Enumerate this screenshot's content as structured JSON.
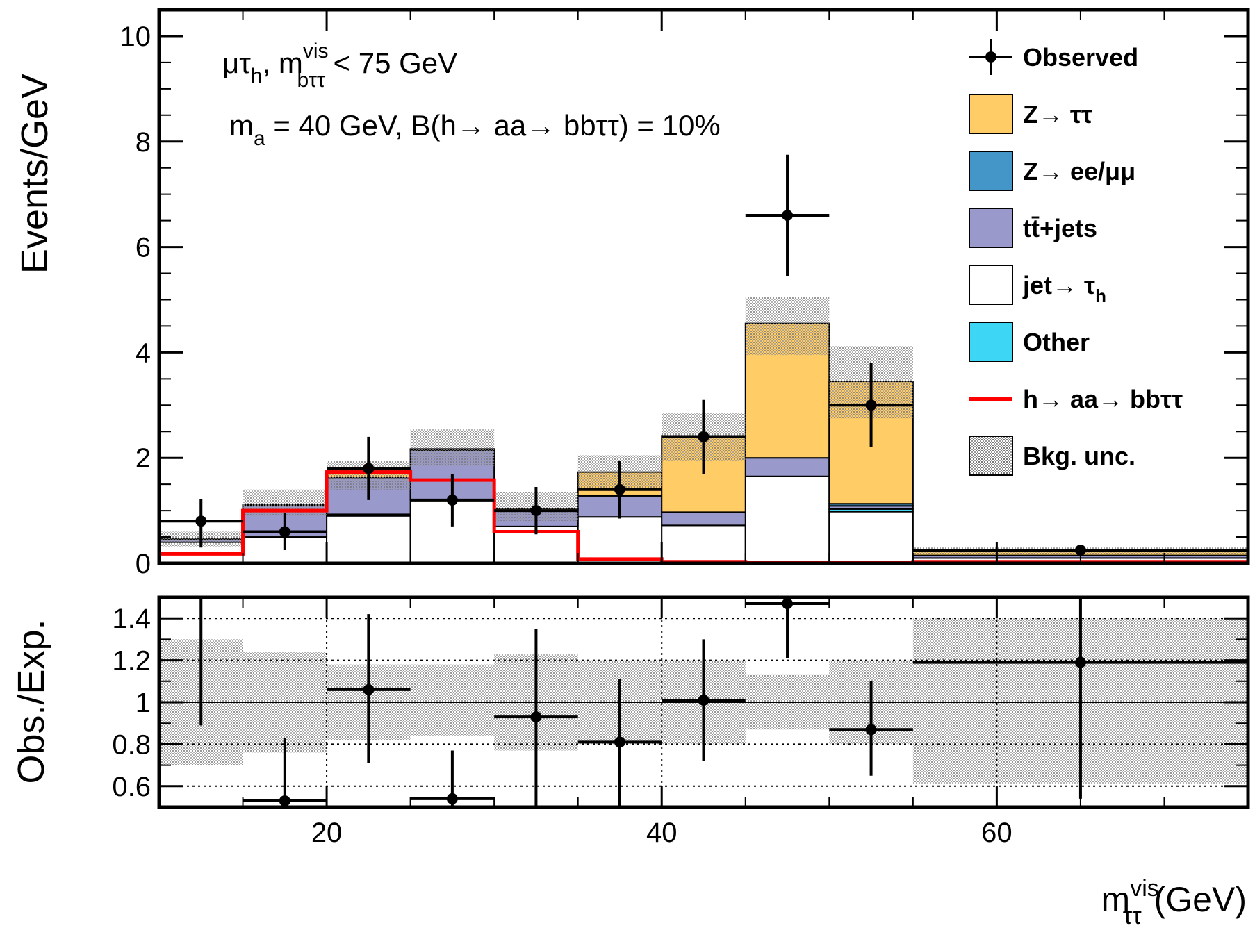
{
  "chart_data": {
    "type": "bar",
    "subtype": "stacked-histogram-with-ratio-panel",
    "x_bin_edges": [
      10,
      15,
      20,
      25,
      30,
      35,
      40,
      45,
      50,
      55,
      75
    ],
    "xlim": [
      10,
      75
    ],
    "x_ticks": [
      "20",
      "40",
      "60"
    ],
    "x_tick_values": [
      20,
      40,
      60
    ],
    "xlabel": {
      "main": "m",
      "sup": "vis",
      "sub": "ττ",
      "unit": "(GeV)"
    },
    "main_panel": {
      "ylabel": "Events/GeV",
      "ylim": [
        0,
        10.5
      ],
      "y_ticks": [
        "0",
        "2",
        "4",
        "6",
        "8",
        "10"
      ],
      "y_tick_values": [
        0,
        2,
        4,
        6,
        8,
        10
      ],
      "annotation": {
        "line1": {
          "pre": "μτ",
          "sub1": "h",
          "mid": ", m",
          "sup": "vis",
          "sub2": "bττ",
          "post": " < 75 GeV"
        },
        "line2": {
          "pre": "m",
          "sub": "a",
          "post": " = 40 GeV, B(h→ aa→ bbττ) = 10%"
        }
      },
      "stack_order": [
        "jet_tau",
        "other",
        "ttbar",
        "zll",
        "ztt"
      ],
      "series": [
        {
          "key": "jet_tau",
          "name": "jet→ τ",
          "name_sub": "h",
          "color": "#ffffff",
          "values": [
            0.4,
            0.5,
            0.9,
            1.2,
            0.7,
            0.88,
            0.72,
            1.65,
            0.98,
            0.1
          ]
        },
        {
          "key": "other",
          "name": "Other",
          "color": "#3ed6f5",
          "values": [
            0.0,
            0.0,
            0.03,
            0.0,
            0.0,
            0.0,
            0.0,
            0.0,
            0.05,
            0.0
          ]
        },
        {
          "key": "ttbar",
          "name": "tt̄+jets",
          "color": "#9999cc",
          "values": [
            0.06,
            0.6,
            0.7,
            0.95,
            0.3,
            0.4,
            0.25,
            0.35,
            0.06,
            0.05
          ]
        },
        {
          "key": "zll",
          "name": "Z→ ee/μμ",
          "color": "#4496c8",
          "values": [
            0.0,
            0.0,
            0.0,
            0.0,
            0.0,
            0.0,
            0.0,
            0.0,
            0.04,
            0.0
          ]
        },
        {
          "key": "ztt",
          "name": "Z→ ττ",
          "color": "#ffcc66",
          "values": [
            0.0,
            0.02,
            0.12,
            0.02,
            0.04,
            0.45,
            1.45,
            2.55,
            2.32,
            0.1
          ]
        }
      ],
      "signal": {
        "name": "h→ aa→ bbττ",
        "color": "#ff0000",
        "values": [
          0.18,
          1.0,
          1.73,
          1.58,
          0.6,
          0.08,
          0.03,
          0.02,
          0.01,
          0.03
        ]
      },
      "bkg_unc": {
        "name": "Bkg. unc.",
        "up": [
          0.6,
          1.4,
          1.95,
          2.55,
          1.35,
          2.05,
          2.85,
          5.05,
          4.12,
          0.3
        ],
        "down": [
          0.32,
          0.9,
          1.4,
          1.85,
          0.8,
          1.4,
          1.95,
          3.95,
          2.75,
          0.17
        ]
      },
      "observed": {
        "name": "Observed",
        "x": [
          12.5,
          17.5,
          22.5,
          27.5,
          32.5,
          37.5,
          42.5,
          47.5,
          52.5,
          65
        ],
        "y": [
          0.8,
          0.6,
          1.8,
          1.2,
          1.0,
          1.4,
          2.4,
          6.6,
          3.0,
          0.25
        ],
        "y_err_low": [
          0.5,
          0.35,
          0.6,
          0.5,
          0.45,
          0.55,
          0.7,
          1.15,
          0.8,
          0.06
        ],
        "y_err_high": [
          0.42,
          0.35,
          0.6,
          0.5,
          0.45,
          0.55,
          0.7,
          1.15,
          0.8,
          0.06
        ]
      },
      "legend_position": "top-right",
      "legend": [
        {
          "label": "Observed",
          "style": "point"
        },
        {
          "label": "Z→ ττ",
          "style": "box",
          "color": "#ffcc66"
        },
        {
          "label": "Z→ ee/μμ",
          "style": "box",
          "color": "#4496c8"
        },
        {
          "label": "tt̄+jets",
          "style": "box",
          "color": "#9999cc"
        },
        {
          "label": "jet→ τ",
          "sub": "h",
          "style": "box",
          "color": "#ffffff"
        },
        {
          "label": "Other",
          "style": "box",
          "color": "#3ed6f5"
        },
        {
          "label": "h→ aa→ bbττ",
          "style": "line",
          "color": "#ff0000"
        },
        {
          "label": "Bkg. unc.",
          "style": "hatch"
        }
      ]
    },
    "ratio_panel": {
      "ylabel": "Obs./Exp.",
      "ylim": [
        0.5,
        1.5
      ],
      "y_ticks": [
        "0.6",
        "0.8",
        "1",
        "1.2",
        "1.4"
      ],
      "y_tick_values": [
        0.6,
        0.8,
        1.0,
        1.2,
        1.4
      ],
      "grid": true,
      "band_up": [
        1.3,
        1.24,
        1.18,
        1.18,
        1.23,
        1.2,
        1.2,
        1.13,
        1.2,
        1.4
      ],
      "band_down": [
        0.7,
        0.76,
        0.82,
        0.84,
        0.77,
        0.8,
        0.8,
        0.87,
        0.8,
        0.61
      ],
      "points": {
        "x": [
          12.5,
          17.5,
          22.5,
          27.5,
          32.5,
          37.5,
          42.5,
          47.5,
          52.5,
          65
        ],
        "y": [
          1.6,
          0.53,
          1.06,
          0.54,
          0.93,
          0.81,
          1.01,
          1.47,
          0.87,
          1.19
        ],
        "err_low": [
          0.71,
          0.3,
          0.35,
          0.4,
          0.45,
          0.45,
          0.29,
          0.26,
          0.22,
          0.65
        ],
        "err_high": [
          0.6,
          0.3,
          0.36,
          0.23,
          0.42,
          0.3,
          0.29,
          0.25,
          0.23,
          0.6
        ]
      }
    }
  }
}
